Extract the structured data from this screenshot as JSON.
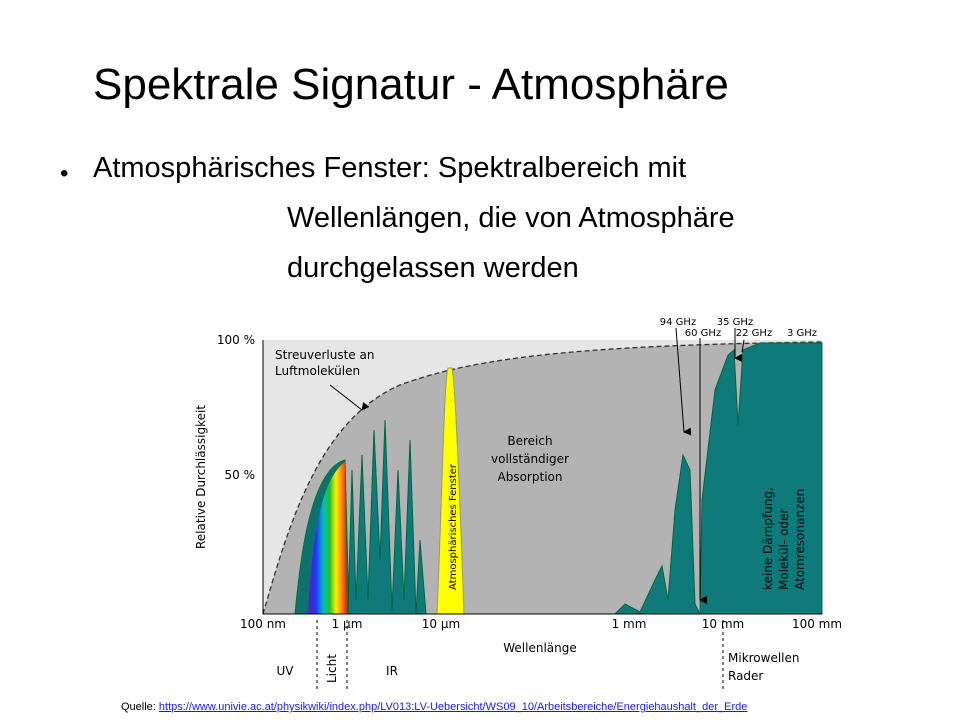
{
  "title": "Spektrale Signatur - Atmosphäre",
  "bullet": {
    "lead": "Atmosphärisches Fenster: Spektralbereich mit",
    "lines": [
      "Wellenlängen, die von Atmosphäre",
      "durchgelassen werden"
    ]
  },
  "figure": {
    "y_axis_label": "Relative Durchlässigkeit",
    "y_labels": [
      "100 %",
      "50 %"
    ],
    "x_labels": [
      "100 nm",
      "1 µm",
      "10 µm",
      "1 mm",
      "10 mm",
      "100 mm"
    ],
    "x_axis_label": "Wellenlänge",
    "top_labels": [
      "94 GHz",
      "60 GHz",
      "35 GHz",
      "22 GHz",
      "3 GHz"
    ],
    "annotations": {
      "scattering": [
        "Streuverluste an",
        "Luftmolekülen"
      ],
      "window": "Atmosphärisches Fenster",
      "absorption": [
        "Bereich",
        "vollständiger",
        "Absorption"
      ],
      "no_damping": [
        "keine Dämpfung,",
        "Molekül- oder",
        "Atomresonanzen"
      ]
    },
    "regions": [
      "UV",
      "Licht",
      "IR",
      "Mikrowellen",
      "Rader"
    ]
  },
  "source": {
    "label": "Quelle:",
    "url": "https://www.univie.ac.at/physikwiki/index.php/LV013:LV-Uebersicht/WS09_10/Arbeitsbereiche/Energiehaushalt_der_Erde"
  }
}
